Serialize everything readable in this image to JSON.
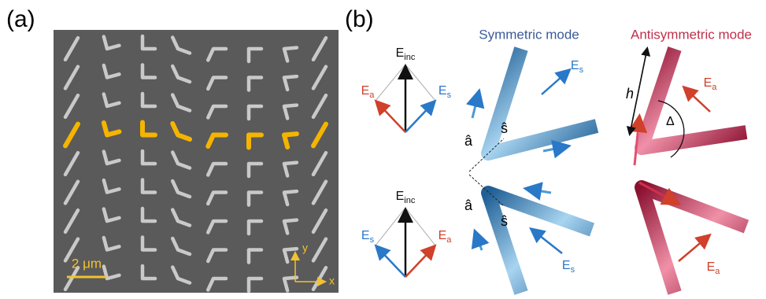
{
  "panel_a": {
    "label": "(a)",
    "scale_bar": "2 μm",
    "axis_y": "y",
    "axis_x": "x"
  },
  "panel_b": {
    "label": "(b)",
    "symmetric_title": "Symmetric mode",
    "antisymmetric_title": "Antisymmetric mode",
    "e_inc": {
      "main": "E",
      "sub": "inc"
    },
    "e_a": {
      "main": "E",
      "sub": "a"
    },
    "e_s": {
      "main": "E",
      "sub": "s"
    },
    "a_hat": "â",
    "s_hat": "ŝ",
    "h": "h",
    "delta": "Δ"
  }
}
